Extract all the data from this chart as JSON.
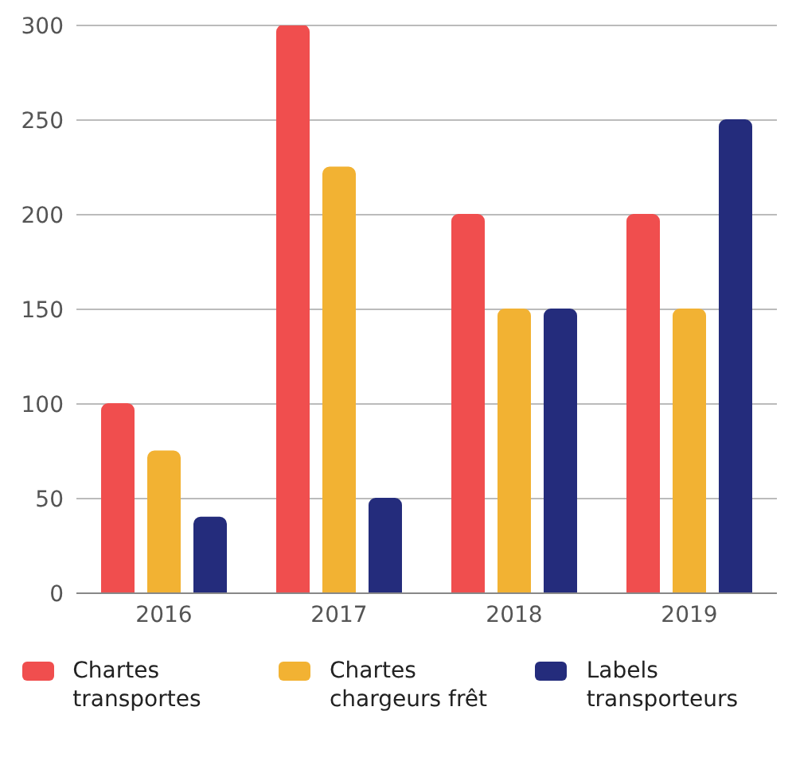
{
  "chart_data": {
    "type": "bar",
    "categories": [
      "2016",
      "2017",
      "2018",
      "2019"
    ],
    "series": [
      {
        "name": "Chartes transportes",
        "color": "#f04e4e",
        "values": [
          100,
          300,
          200,
          200
        ]
      },
      {
        "name": "Chartes chargeurs frêt",
        "color": "#f2b233",
        "values": [
          75,
          225,
          150,
          150
        ]
      },
      {
        "name": "Labels transporteurs",
        "color": "#242c7c",
        "values": [
          40,
          50,
          150,
          250
        ]
      }
    ],
    "ylim": [
      0,
      300
    ],
    "yticks": [
      0,
      50,
      100,
      150,
      200,
      250,
      300
    ],
    "grid": "y",
    "legend": "bottom"
  }
}
